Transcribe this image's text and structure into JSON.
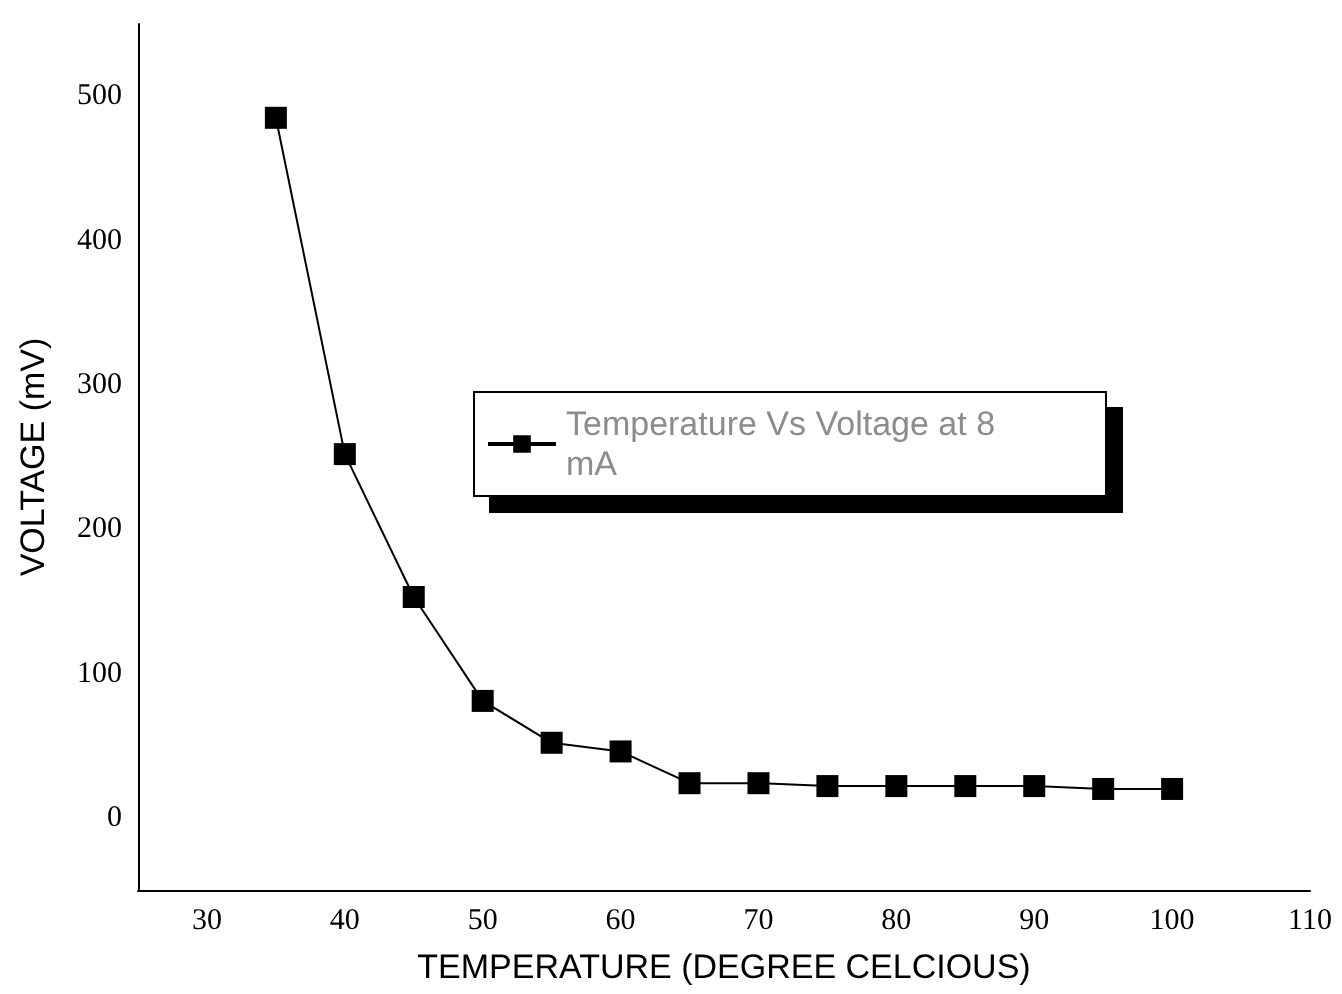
{
  "chart_data": {
    "type": "line",
    "xlabel": "TEMPERATURE (DEGREE CELCIOUS)",
    "ylabel": "VOLTAGE (mV)",
    "x": [
      35,
      40,
      45,
      50,
      55,
      60,
      65,
      70,
      75,
      80,
      85,
      90,
      95,
      100
    ],
    "series": [
      {
        "name": "Temperature Vs Voltage at 8 mA",
        "color": "#000000",
        "values": [
          485,
          252,
          153,
          81,
          52,
          46,
          24,
          24,
          22,
          22,
          22,
          22,
          20,
          20
        ]
      }
    ],
    "xlim": [
      25,
      110
    ],
    "xticks": [
      30,
      40,
      50,
      60,
      70,
      80,
      90,
      100,
      110
    ],
    "ylim": [
      -50,
      550
    ],
    "yticks": [
      0,
      100,
      200,
      300,
      400,
      500
    ],
    "grid": false,
    "legend": "center",
    "marker": "square",
    "line_style": "solid"
  }
}
